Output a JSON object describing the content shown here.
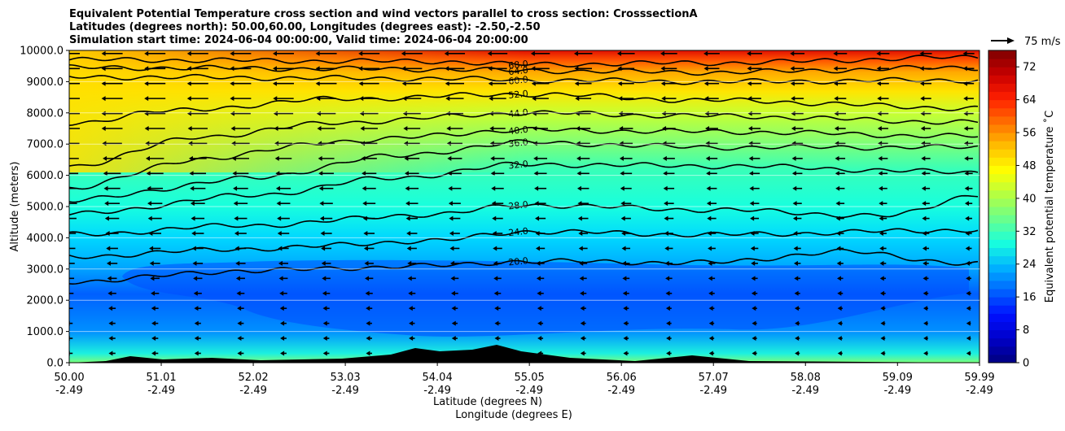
{
  "chart_data": {
    "type": "heatmap",
    "title_lines": [
      "Equivalent Potential Temperature cross section and wind vectors parallel to cross section: CrosssectionA",
      "Latitudes (degrees north): 50.00,60.00, Longitudes (degrees east): -2.50,-2.50",
      "Simulation start time: 2024-06-04 00:00:00, Valid time: 2024-06-04 20:00:00"
    ],
    "xlabel": "Latitude (degrees N)",
    "xlabel2": "Longitude (degrees E)",
    "ylabel": "Altitude (meters)",
    "colorbar_label": "Equivalent potential temperature ˚C",
    "quiver_key_label": "75 m/s",
    "xlim": [
      50.0,
      59.99
    ],
    "ylim": [
      0,
      10000
    ],
    "x_ticks": [
      {
        "lat": "50.00",
        "lon": "-2.49"
      },
      {
        "lat": "51.01",
        "lon": "-2.49"
      },
      {
        "lat": "52.02",
        "lon": "-2.49"
      },
      {
        "lat": "53.03",
        "lon": "-2.49"
      },
      {
        "lat": "54.04",
        "lon": "-2.49"
      },
      {
        "lat": "55.05",
        "lon": "-2.49"
      },
      {
        "lat": "56.06",
        "lon": "-2.49"
      },
      {
        "lat": "57.07",
        "lon": "-2.49"
      },
      {
        "lat": "58.08",
        "lon": "-2.49"
      },
      {
        "lat": "59.09",
        "lon": "-2.49"
      },
      {
        "lat": "59.99",
        "lon": "-2.49"
      }
    ],
    "y_ticks": [
      "0.0",
      "1000.0",
      "2000.0",
      "3000.0",
      "4000.0",
      "5000.0",
      "6000.0",
      "7000.0",
      "8000.0",
      "9000.0",
      "10000.0"
    ],
    "colorbar_range": [
      0,
      76
    ],
    "colorbar_ticks": [
      "0",
      "8",
      "16",
      "24",
      "32",
      "40",
      "48",
      "56",
      "64",
      "72"
    ],
    "colorbar_colors": [
      "#00007f",
      "#0000c8",
      "#0010ff",
      "#0064ff",
      "#00b4ff",
      "#18ffde",
      "#6aff8c",
      "#b4ff42",
      "#ffff00",
      "#ffc000",
      "#ff7000",
      "#ff2000",
      "#c80000",
      "#7f0000"
    ],
    "contour_lines": [
      {
        "label": "68.0",
        "level": 68,
        "profile": [
          [
            50.0,
            9700
          ],
          [
            54.0,
            9650
          ],
          [
            55.0,
            9550
          ],
          [
            57.0,
            9600
          ],
          [
            59.99,
            9780
          ]
        ]
      },
      {
        "label": "64.0",
        "level": 64,
        "profile": [
          [
            50.0,
            9450
          ],
          [
            54.0,
            9400
          ],
          [
            55.0,
            9350
          ],
          [
            57.0,
            9300
          ],
          [
            59.99,
            9450
          ]
        ]
      },
      {
        "label": "60.0",
        "level": 60,
        "profile": [
          [
            50.0,
            9150
          ],
          [
            54.0,
            9100
          ],
          [
            55.0,
            9050
          ],
          [
            57.0,
            9000
          ],
          [
            59.99,
            9050
          ]
        ]
      },
      {
        "label": "52.0",
        "level": 52,
        "profile": [
          [
            50.0,
            7650
          ],
          [
            51.0,
            8050
          ],
          [
            53.0,
            8450
          ],
          [
            55.0,
            8600
          ],
          [
            57.0,
            8400
          ],
          [
            59.99,
            8150
          ]
        ]
      },
      {
        "label": "44.0",
        "level": 44,
        "profile": [
          [
            50.0,
            6300
          ],
          [
            51.5,
            7250
          ],
          [
            53.0,
            7700
          ],
          [
            55.0,
            8000
          ],
          [
            57.0,
            7900
          ],
          [
            59.99,
            7700
          ]
        ]
      },
      {
        "label": "40.0",
        "level": 40,
        "profile": [
          [
            50.0,
            5600
          ],
          [
            51.5,
            6550
          ],
          [
            53.0,
            7100
          ],
          [
            55.0,
            7450
          ],
          [
            57.0,
            7400
          ],
          [
            59.99,
            7250
          ]
        ]
      },
      {
        "label": "36.0",
        "level": 36,
        "profile": [
          [
            50.0,
            5200
          ],
          [
            52.0,
            5900
          ],
          [
            53.5,
            6600
          ],
          [
            55.0,
            7050
          ],
          [
            57.0,
            6900
          ],
          [
            59.99,
            6900
          ]
        ]
      },
      {
        "label": "32.0",
        "level": 32,
        "profile": [
          [
            50.0,
            4750
          ],
          [
            52.0,
            5350
          ],
          [
            53.5,
            5900
          ],
          [
            55.0,
            6350
          ],
          [
            57.0,
            6300
          ],
          [
            59.99,
            6100
          ]
        ]
      },
      {
        "label": "28.0",
        "level": 28,
        "profile": [
          [
            50.0,
            4100
          ],
          [
            52.0,
            4400
          ],
          [
            54.0,
            4750
          ],
          [
            55.0,
            5050
          ],
          [
            57.0,
            4900
          ],
          [
            59.0,
            4700
          ],
          [
            59.99,
            5400
          ]
        ]
      },
      {
        "label": "24.0",
        "level": 24,
        "profile": [
          [
            50.0,
            3400
          ],
          [
            52.0,
            3650
          ],
          [
            54.0,
            3900
          ],
          [
            55.0,
            4200
          ],
          [
            57.0,
            4100
          ],
          [
            59.99,
            4250
          ]
        ]
      },
      {
        "label": "20.0",
        "level": 20,
        "profile": [
          [
            50.0,
            2600
          ],
          [
            52.0,
            2950
          ],
          [
            54.0,
            3100
          ],
          [
            55.0,
            3250
          ],
          [
            57.0,
            3200
          ],
          [
            58.5,
            3550
          ],
          [
            59.99,
            3150
          ]
        ]
      }
    ]
  }
}
